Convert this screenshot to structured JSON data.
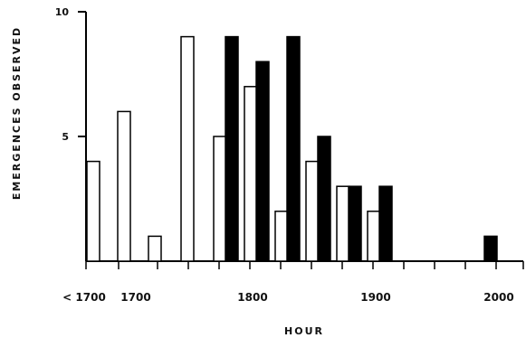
{
  "chart_data": {
    "type": "bar",
    "title": "",
    "xlabel": "HOUR",
    "ylabel": "EMERGENCES OBSERVED",
    "ylim": [
      0,
      10
    ],
    "y_ticks": [
      {
        "value": 5,
        "label": "5"
      },
      {
        "value": 10,
        "label": "10"
      }
    ],
    "x_tick_labels": [
      {
        "hour": 1650,
        "label": "< 1700"
      },
      {
        "hour": 1700,
        "label": "1700"
      },
      {
        "hour": 1800,
        "label": "1800"
      },
      {
        "hour": 1900,
        "label": "1900"
      },
      {
        "hour": 2000,
        "label": "2000"
      }
    ],
    "grid": false,
    "legend": "none",
    "series": [
      {
        "fill": "#ffffff",
        "points": [
          {
            "hour": "<1700",
            "value": 4
          },
          {
            "hour": "1700",
            "value": 6
          },
          {
            "hour": "1720",
            "value": 1
          },
          {
            "hour": "1740",
            "value": 9
          },
          {
            "hour": "1760",
            "value": 5
          },
          {
            "hour": "1780",
            "value": 7
          },
          {
            "hour": "1800",
            "value": 2
          },
          {
            "hour": "1820",
            "value": 4
          },
          {
            "hour": "1840",
            "value": 3
          },
          {
            "hour": "1860",
            "value": 2
          }
        ]
      },
      {
        "fill": "#000000",
        "points": [
          {
            "hour": "1760",
            "value": 9
          },
          {
            "hour": "1780",
            "value": 8
          },
          {
            "hour": "1800",
            "value": 9
          },
          {
            "hour": "1820",
            "value": 5
          },
          {
            "hour": "1840",
            "value": 3
          },
          {
            "hour": "1860",
            "value": 3
          },
          {
            "hour": "1920",
            "value": 1
          }
        ]
      }
    ]
  }
}
